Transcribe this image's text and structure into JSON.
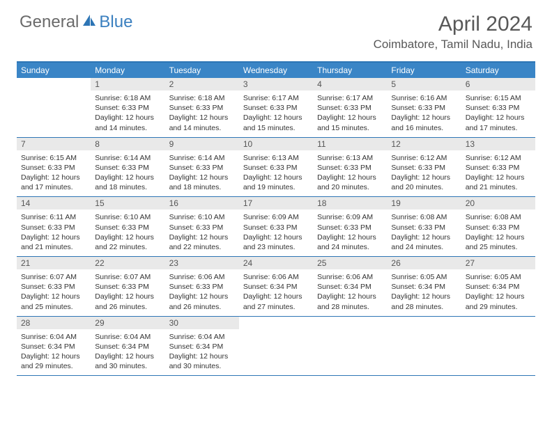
{
  "brand": {
    "general": "General",
    "blue": "Blue"
  },
  "title": "April 2024",
  "location": "Coimbatore, Tamil Nadu, India",
  "colors": {
    "header_bg": "#3a85c6",
    "rule": "#2d75b5",
    "daynum_bg": "#e9e9e9",
    "text": "#333333",
    "title_color": "#585858"
  },
  "day_headers": [
    "Sunday",
    "Monday",
    "Tuesday",
    "Wednesday",
    "Thursday",
    "Friday",
    "Saturday"
  ],
  "weeks": [
    [
      null,
      {
        "n": "1",
        "sr": "6:18 AM",
        "ss": "6:33 PM",
        "dl": "12 hours and 14 minutes."
      },
      {
        "n": "2",
        "sr": "6:18 AM",
        "ss": "6:33 PM",
        "dl": "12 hours and 14 minutes."
      },
      {
        "n": "3",
        "sr": "6:17 AM",
        "ss": "6:33 PM",
        "dl": "12 hours and 15 minutes."
      },
      {
        "n": "4",
        "sr": "6:17 AM",
        "ss": "6:33 PM",
        "dl": "12 hours and 15 minutes."
      },
      {
        "n": "5",
        "sr": "6:16 AM",
        "ss": "6:33 PM",
        "dl": "12 hours and 16 minutes."
      },
      {
        "n": "6",
        "sr": "6:15 AM",
        "ss": "6:33 PM",
        "dl": "12 hours and 17 minutes."
      }
    ],
    [
      {
        "n": "7",
        "sr": "6:15 AM",
        "ss": "6:33 PM",
        "dl": "12 hours and 17 minutes."
      },
      {
        "n": "8",
        "sr": "6:14 AM",
        "ss": "6:33 PM",
        "dl": "12 hours and 18 minutes."
      },
      {
        "n": "9",
        "sr": "6:14 AM",
        "ss": "6:33 PM",
        "dl": "12 hours and 18 minutes."
      },
      {
        "n": "10",
        "sr": "6:13 AM",
        "ss": "6:33 PM",
        "dl": "12 hours and 19 minutes."
      },
      {
        "n": "11",
        "sr": "6:13 AM",
        "ss": "6:33 PM",
        "dl": "12 hours and 20 minutes."
      },
      {
        "n": "12",
        "sr": "6:12 AM",
        "ss": "6:33 PM",
        "dl": "12 hours and 20 minutes."
      },
      {
        "n": "13",
        "sr": "6:12 AM",
        "ss": "6:33 PM",
        "dl": "12 hours and 21 minutes."
      }
    ],
    [
      {
        "n": "14",
        "sr": "6:11 AM",
        "ss": "6:33 PM",
        "dl": "12 hours and 21 minutes."
      },
      {
        "n": "15",
        "sr": "6:10 AM",
        "ss": "6:33 PM",
        "dl": "12 hours and 22 minutes."
      },
      {
        "n": "16",
        "sr": "6:10 AM",
        "ss": "6:33 PM",
        "dl": "12 hours and 22 minutes."
      },
      {
        "n": "17",
        "sr": "6:09 AM",
        "ss": "6:33 PM",
        "dl": "12 hours and 23 minutes."
      },
      {
        "n": "18",
        "sr": "6:09 AM",
        "ss": "6:33 PM",
        "dl": "12 hours and 24 minutes."
      },
      {
        "n": "19",
        "sr": "6:08 AM",
        "ss": "6:33 PM",
        "dl": "12 hours and 24 minutes."
      },
      {
        "n": "20",
        "sr": "6:08 AM",
        "ss": "6:33 PM",
        "dl": "12 hours and 25 minutes."
      }
    ],
    [
      {
        "n": "21",
        "sr": "6:07 AM",
        "ss": "6:33 PM",
        "dl": "12 hours and 25 minutes."
      },
      {
        "n": "22",
        "sr": "6:07 AM",
        "ss": "6:33 PM",
        "dl": "12 hours and 26 minutes."
      },
      {
        "n": "23",
        "sr": "6:06 AM",
        "ss": "6:33 PM",
        "dl": "12 hours and 26 minutes."
      },
      {
        "n": "24",
        "sr": "6:06 AM",
        "ss": "6:34 PM",
        "dl": "12 hours and 27 minutes."
      },
      {
        "n": "25",
        "sr": "6:06 AM",
        "ss": "6:34 PM",
        "dl": "12 hours and 28 minutes."
      },
      {
        "n": "26",
        "sr": "6:05 AM",
        "ss": "6:34 PM",
        "dl": "12 hours and 28 minutes."
      },
      {
        "n": "27",
        "sr": "6:05 AM",
        "ss": "6:34 PM",
        "dl": "12 hours and 29 minutes."
      }
    ],
    [
      {
        "n": "28",
        "sr": "6:04 AM",
        "ss": "6:34 PM",
        "dl": "12 hours and 29 minutes."
      },
      {
        "n": "29",
        "sr": "6:04 AM",
        "ss": "6:34 PM",
        "dl": "12 hours and 30 minutes."
      },
      {
        "n": "30",
        "sr": "6:04 AM",
        "ss": "6:34 PM",
        "dl": "12 hours and 30 minutes."
      },
      null,
      null,
      null,
      null
    ]
  ],
  "labels": {
    "sunrise": "Sunrise:",
    "sunset": "Sunset:",
    "daylight": "Daylight:"
  }
}
